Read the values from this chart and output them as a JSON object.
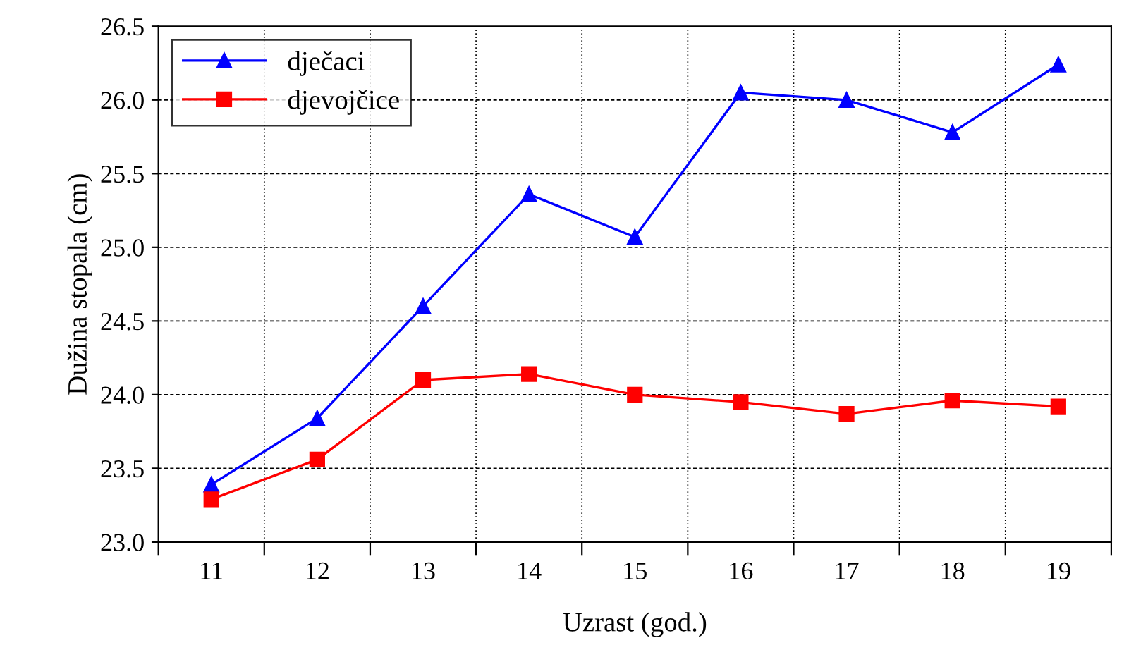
{
  "chart_data": {
    "type": "line",
    "xlabel": "Uzrast (god.)",
    "ylabel": "Dužina stopala (cm)",
    "categories": [
      "11",
      "12",
      "13",
      "14",
      "15",
      "16",
      "17",
      "18",
      "19"
    ],
    "series": [
      {
        "name": "dječaci",
        "color": "#0000ff",
        "marker": "triangle",
        "values": [
          23.39,
          23.84,
          24.6,
          25.36,
          25.07,
          26.05,
          26.0,
          25.78,
          26.24
        ]
      },
      {
        "name": "djevojčice",
        "color": "#ff0000",
        "marker": "square",
        "values": [
          23.29,
          23.56,
          24.1,
          24.14,
          24.0,
          23.95,
          23.87,
          23.96,
          23.92
        ]
      }
    ],
    "ylim": [
      23.0,
      26.5
    ],
    "yticks": [
      {
        "value": 23.0,
        "label": "23.0"
      },
      {
        "value": 23.5,
        "label": "23.5"
      },
      {
        "value": 24.0,
        "label": "24.0"
      },
      {
        "value": 24.5,
        "label": "24.5"
      },
      {
        "value": 25.0,
        "label": "25.0"
      },
      {
        "value": 25.5,
        "label": "25.5"
      },
      {
        "value": 26.0,
        "label": "26.0"
      },
      {
        "value": 26.5,
        "label": "26.5"
      }
    ],
    "grid": true,
    "legend": "top left",
    "line_style": "solid"
  }
}
